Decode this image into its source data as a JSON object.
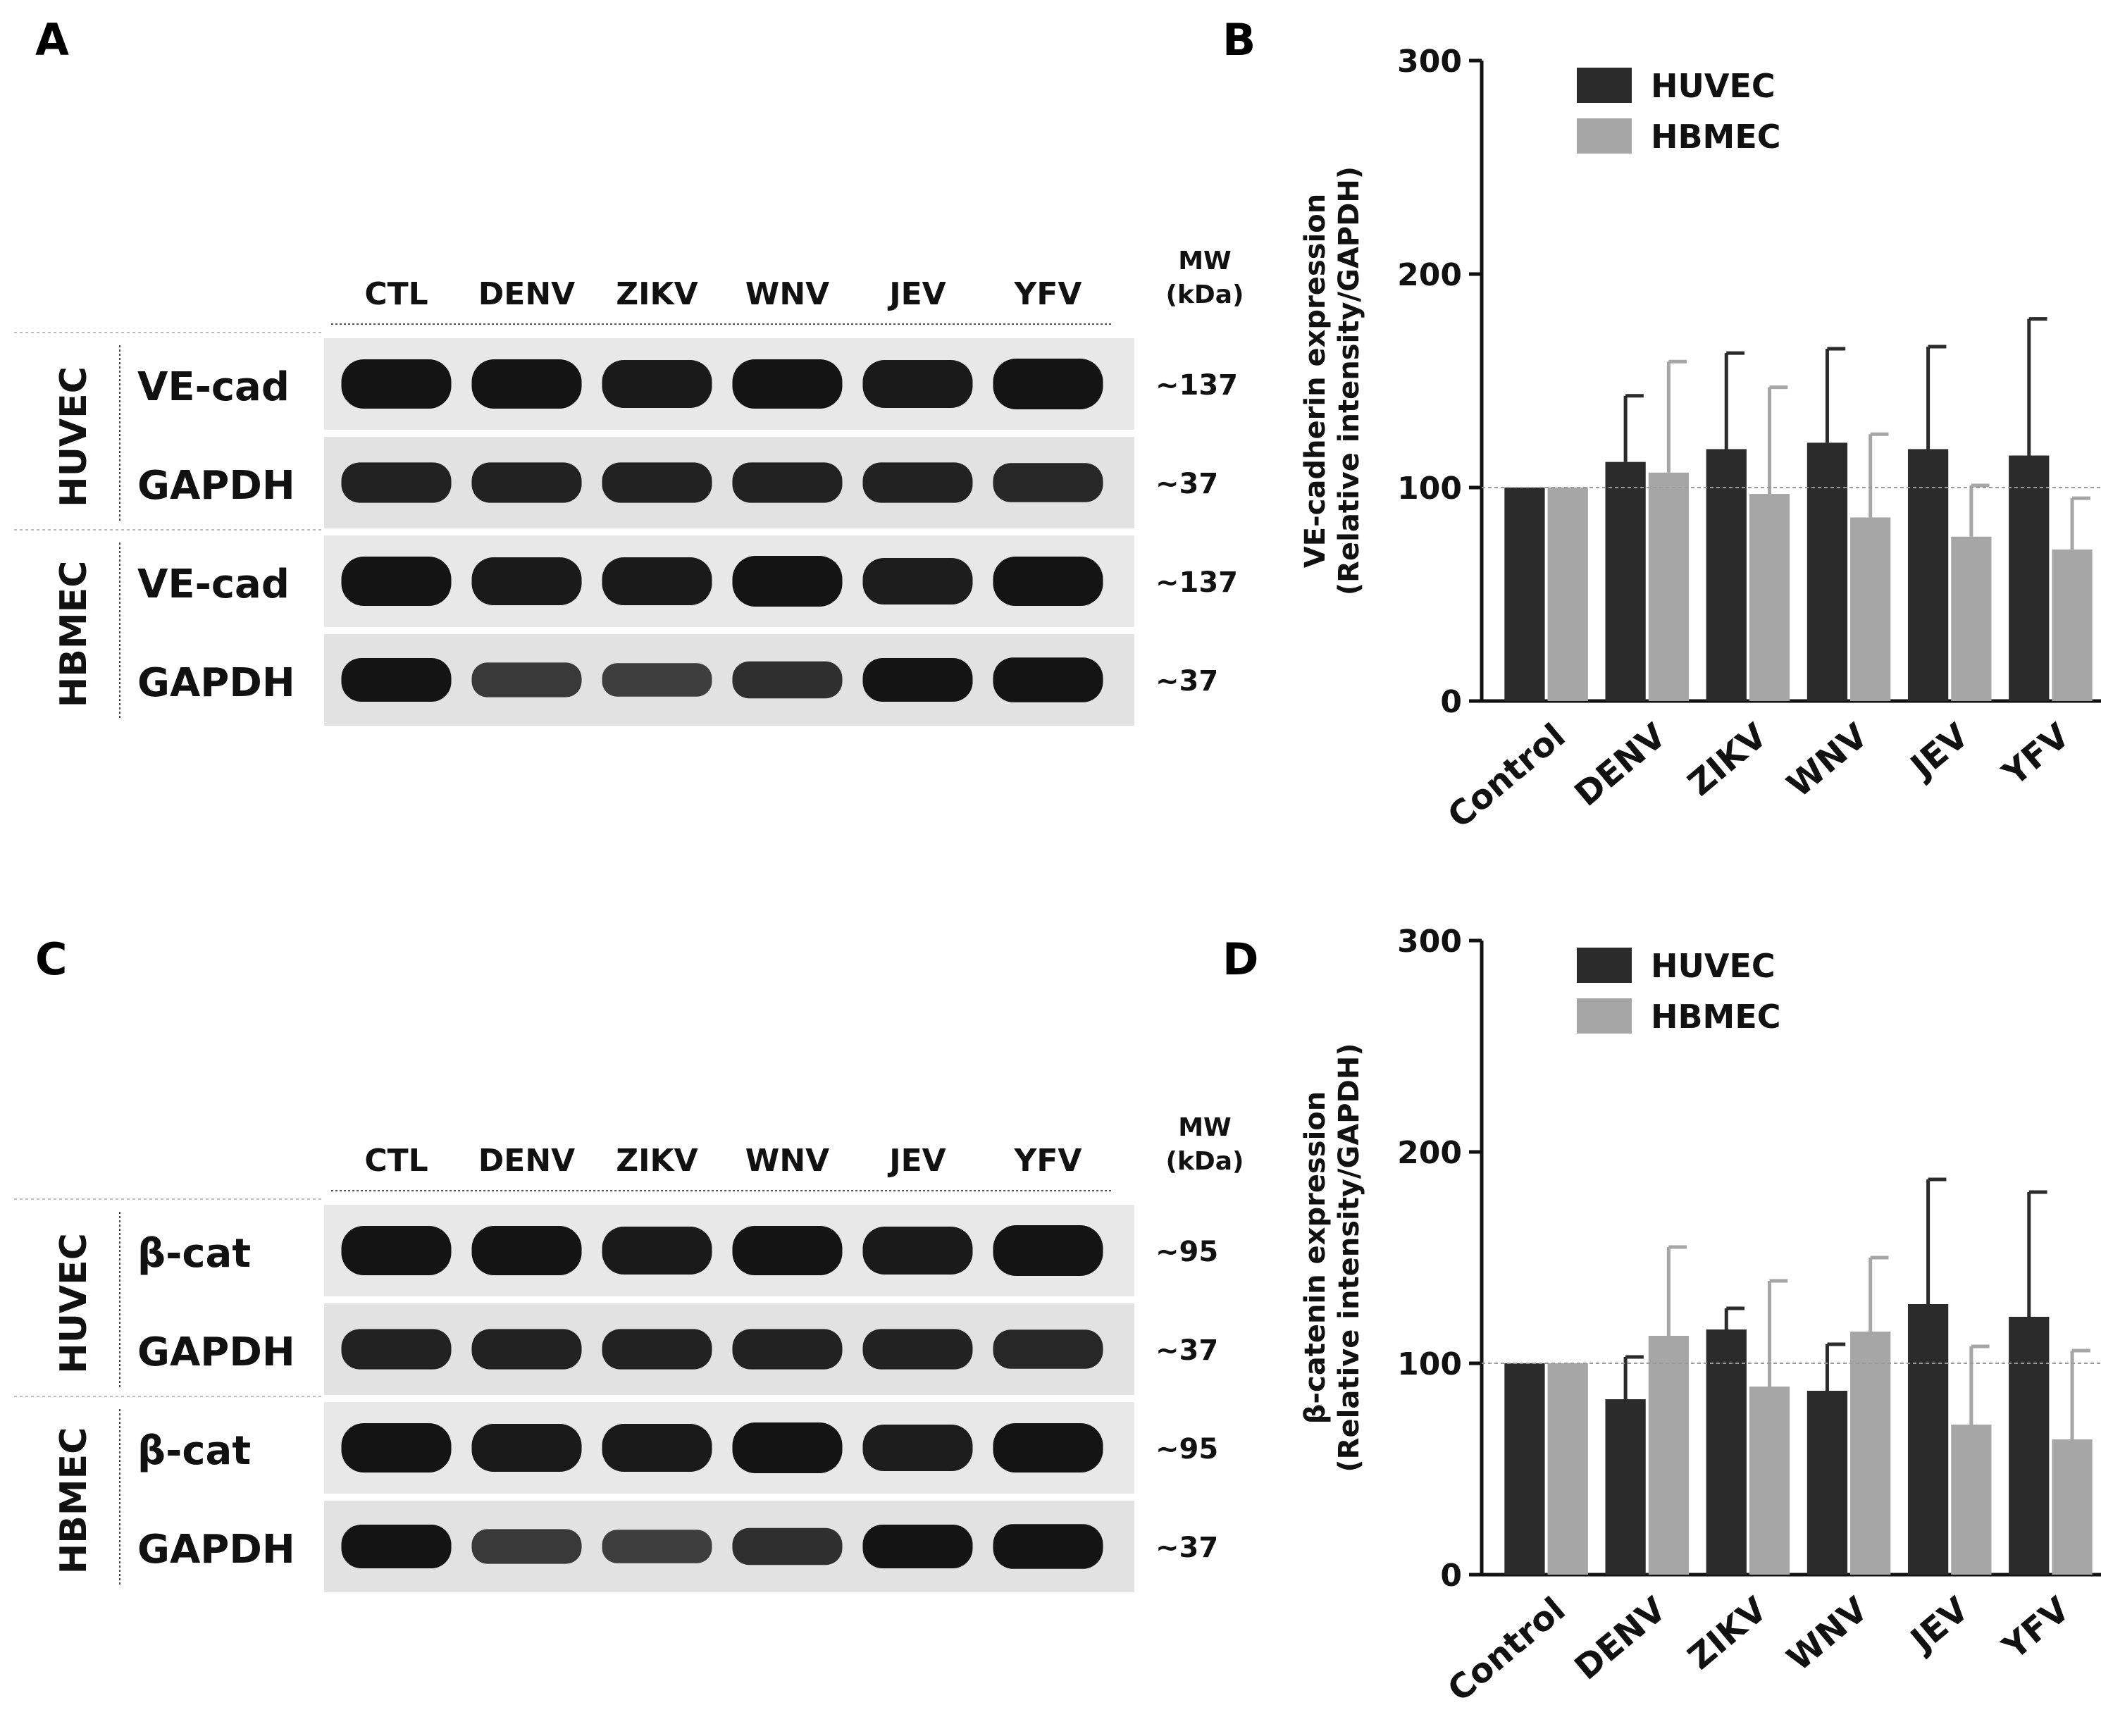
{
  "panel_labels": [
    "A",
    "B",
    "C",
    "D"
  ],
  "blots": [
    {
      "lanes": [
        "CTL",
        "DENV",
        "ZIKV",
        "WNV",
        "JEV",
        "YFV"
      ],
      "mw_header": [
        "MW",
        "(kDa)"
      ],
      "groups": [
        {
          "name": "HUVEC",
          "rows": [
            {
              "label": "VE-cad",
              "mw": "~137"
            },
            {
              "label": "GAPDH",
              "mw": "~37"
            }
          ]
        },
        {
          "name": "HBMEC",
          "rows": [
            {
              "label": "VE-cad",
              "mw": "~137"
            },
            {
              "label": "GAPDH",
              "mw": "~37"
            }
          ]
        }
      ]
    },
    {
      "lanes": [
        "CTL",
        "DENV",
        "ZIKV",
        "WNV",
        "JEV",
        "YFV"
      ],
      "mw_header": [
        "MW",
        "(kDa)"
      ],
      "groups": [
        {
          "name": "HUVEC",
          "rows": [
            {
              "label": "β-cat",
              "mw": "~95"
            },
            {
              "label": "GAPDH",
              "mw": "~37"
            }
          ]
        },
        {
          "name": "HBMEC",
          "rows": [
            {
              "label": "β-cat",
              "mw": "~95"
            },
            {
              "label": "GAPDH",
              "mw": "~37"
            }
          ]
        }
      ]
    }
  ],
  "colors": {
    "huvec": "#2b2b2b",
    "hbmec": "#a6a6a6",
    "reference_line": "#999999"
  },
  "chart_data": [
    {
      "type": "bar",
      "ylabel": [
        "VE-cadherin expression",
        "(Relative intensity/GAPDH)"
      ],
      "categories": [
        "Control",
        "DENV",
        "ZIKV",
        "WNV",
        "JEV",
        "YFV"
      ],
      "ylim": [
        0,
        300
      ],
      "yticks": [
        "0",
        "100",
        "200",
        "300"
      ],
      "reference_line": 100,
      "legend_position": "top-left",
      "series": [
        {
          "name": "HUVEC",
          "values": [
            100,
            112,
            118,
            121,
            118,
            115
          ],
          "errors": [
            0,
            31,
            45,
            44,
            48,
            64
          ]
        },
        {
          "name": "HBMEC",
          "values": [
            100,
            107,
            97,
            86,
            77,
            71
          ],
          "errors": [
            0,
            52,
            50,
            39,
            24,
            24
          ]
        }
      ]
    },
    {
      "type": "bar",
      "ylabel": [
        "β-catenin expression",
        "(Relative intensity/GAPDH)"
      ],
      "categories": [
        "Control",
        "DENV",
        "ZIKV",
        "WNV",
        "JEV",
        "YFV"
      ],
      "ylim": [
        0,
        300
      ],
      "yticks": [
        "0",
        "100",
        "200",
        "300"
      ],
      "reference_line": 100,
      "legend_position": "top-left",
      "series": [
        {
          "name": "HUVEC",
          "values": [
            100,
            83,
            116,
            87,
            128,
            122
          ],
          "errors": [
            0,
            20,
            10,
            22,
            59,
            59
          ]
        },
        {
          "name": "HBMEC",
          "values": [
            100,
            113,
            89,
            115,
            71,
            64
          ],
          "errors": [
            0,
            42,
            50,
            35,
            37,
            42
          ]
        }
      ]
    }
  ]
}
